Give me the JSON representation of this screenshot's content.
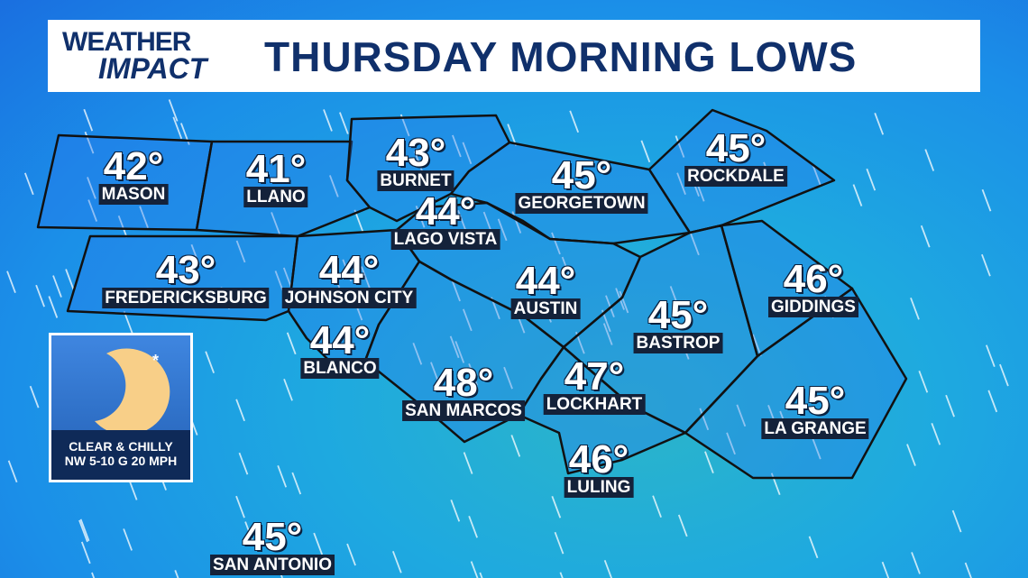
{
  "header": {
    "logo_line1": "WEATHER",
    "logo_line2": "IMPACT",
    "title": "THURSDAY MORNING LOWS"
  },
  "colors": {
    "title": "#10306b",
    "ocean_cyan": "#2bb5c9",
    "blue": "#1a6fe0",
    "moon": "#f8cf88"
  },
  "cities": [
    {
      "name": "MASON",
      "temp": "42°"
    },
    {
      "name": "LLANO",
      "temp": "41°"
    },
    {
      "name": "BURNET",
      "temp": "43°"
    },
    {
      "name": "GEORGETOWN",
      "temp": "45°"
    },
    {
      "name": "ROCKDALE",
      "temp": "45°"
    },
    {
      "name": "LAGO VISTA",
      "temp": "44°"
    },
    {
      "name": "FREDERICKSBURG",
      "temp": "43°"
    },
    {
      "name": "JOHNSON CITY",
      "temp": "44°"
    },
    {
      "name": "AUSTIN",
      "temp": "44°"
    },
    {
      "name": "BASTROP",
      "temp": "45°"
    },
    {
      "name": "GIDDINGS",
      "temp": "46°"
    },
    {
      "name": "BLANCO",
      "temp": "44°"
    },
    {
      "name": "SAN MARCOS",
      "temp": "48°"
    },
    {
      "name": "LOCKHART",
      "temp": "47°"
    },
    {
      "name": "LA GRANGE",
      "temp": "45°"
    },
    {
      "name": "LULING",
      "temp": "46°"
    },
    {
      "name": "SAN ANTONIO",
      "temp": "45°"
    }
  ],
  "conditions": {
    "icon": "moon-icon",
    "line1": "CLEAR & CHILLY",
    "line2": "NW 5-10 G 20 MPH"
  }
}
